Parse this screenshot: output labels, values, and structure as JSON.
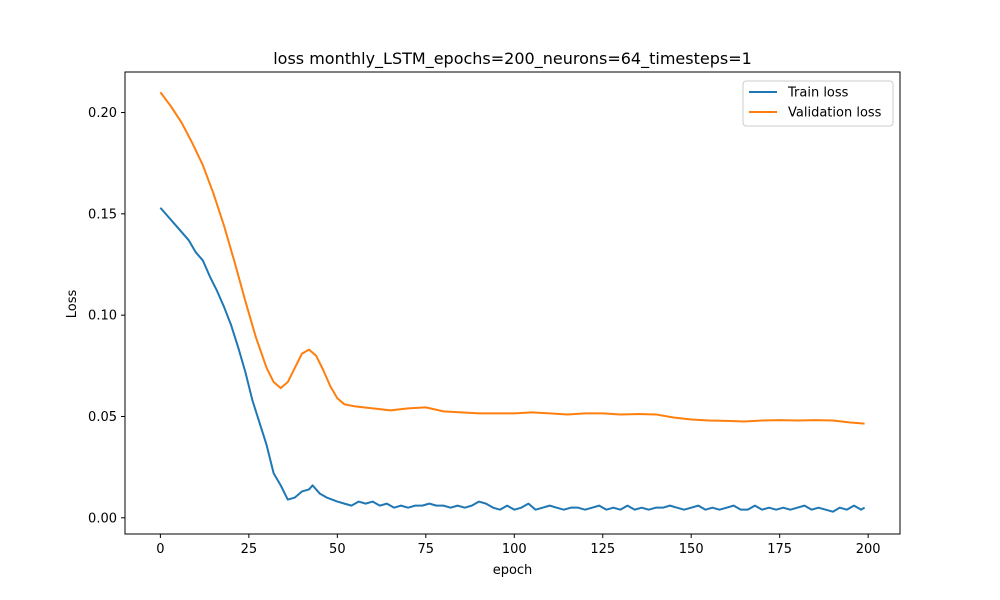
{
  "chart_data": {
    "type": "line",
    "title": "loss monthly_LSTM_epochs=200_neurons=64_timesteps=1",
    "xlabel": "epoch",
    "ylabel": "Loss",
    "xlim": [
      -10,
      209
    ],
    "ylim": [
      -0.008,
      0.22
    ],
    "xticks": [
      0,
      25,
      50,
      75,
      100,
      125,
      150,
      175,
      200
    ],
    "xtick_labels": [
      "0",
      "25",
      "50",
      "75",
      "100",
      "125",
      "150",
      "175",
      "200"
    ],
    "yticks": [
      0.0,
      0.05,
      0.1,
      0.15,
      0.2
    ],
    "ytick_labels": [
      "0.00",
      "0.05",
      "0.10",
      "0.15",
      "0.20"
    ],
    "grid": false,
    "legend_position": "top-right",
    "series": [
      {
        "name": "Train loss",
        "color": "#1f77b4",
        "points": [
          [
            0,
            0.153
          ],
          [
            2,
            0.149
          ],
          [
            4,
            0.145
          ],
          [
            6,
            0.141
          ],
          [
            8,
            0.137
          ],
          [
            10,
            0.131
          ],
          [
            12,
            0.127
          ],
          [
            14,
            0.119
          ],
          [
            16,
            0.112
          ],
          [
            18,
            0.104
          ],
          [
            20,
            0.095
          ],
          [
            22,
            0.084
          ],
          [
            24,
            0.072
          ],
          [
            26,
            0.058
          ],
          [
            28,
            0.047
          ],
          [
            30,
            0.036
          ],
          [
            32,
            0.022
          ],
          [
            34,
            0.016
          ],
          [
            36,
            0.009
          ],
          [
            38,
            0.01
          ],
          [
            40,
            0.013
          ],
          [
            42,
            0.014
          ],
          [
            43,
            0.016
          ],
          [
            45,
            0.012
          ],
          [
            47,
            0.01
          ],
          [
            50,
            0.008
          ],
          [
            52,
            0.007
          ],
          [
            54,
            0.006
          ],
          [
            56,
            0.008
          ],
          [
            58,
            0.007
          ],
          [
            60,
            0.008
          ],
          [
            62,
            0.006
          ],
          [
            64,
            0.007
          ],
          [
            66,
            0.005
          ],
          [
            68,
            0.006
          ],
          [
            70,
            0.005
          ],
          [
            72,
            0.006
          ],
          [
            74,
            0.006
          ],
          [
            76,
            0.007
          ],
          [
            78,
            0.006
          ],
          [
            80,
            0.006
          ],
          [
            82,
            0.005
          ],
          [
            84,
            0.006
          ],
          [
            86,
            0.005
          ],
          [
            88,
            0.006
          ],
          [
            90,
            0.008
          ],
          [
            92,
            0.007
          ],
          [
            94,
            0.005
          ],
          [
            96,
            0.004
          ],
          [
            98,
            0.006
          ],
          [
            100,
            0.004
          ],
          [
            102,
            0.005
          ],
          [
            104,
            0.007
          ],
          [
            106,
            0.004
          ],
          [
            108,
            0.005
          ],
          [
            110,
            0.006
          ],
          [
            112,
            0.005
          ],
          [
            114,
            0.004
          ],
          [
            116,
            0.005
          ],
          [
            118,
            0.005
          ],
          [
            120,
            0.004
          ],
          [
            122,
            0.005
          ],
          [
            124,
            0.006
          ],
          [
            126,
            0.004
          ],
          [
            128,
            0.005
          ],
          [
            130,
            0.004
          ],
          [
            132,
            0.006
          ],
          [
            134,
            0.004
          ],
          [
            136,
            0.005
          ],
          [
            138,
            0.004
          ],
          [
            140,
            0.005
          ],
          [
            142,
            0.005
          ],
          [
            144,
            0.006
          ],
          [
            146,
            0.005
          ],
          [
            148,
            0.004
          ],
          [
            150,
            0.005
          ],
          [
            152,
            0.006
          ],
          [
            154,
            0.004
          ],
          [
            156,
            0.005
          ],
          [
            158,
            0.004
          ],
          [
            160,
            0.005
          ],
          [
            162,
            0.006
          ],
          [
            164,
            0.004
          ],
          [
            166,
            0.004
          ],
          [
            168,
            0.006
          ],
          [
            170,
            0.004
          ],
          [
            172,
            0.005
          ],
          [
            174,
            0.004
          ],
          [
            176,
            0.005
          ],
          [
            178,
            0.004
          ],
          [
            180,
            0.005
          ],
          [
            182,
            0.006
          ],
          [
            184,
            0.004
          ],
          [
            186,
            0.005
          ],
          [
            188,
            0.004
          ],
          [
            190,
            0.003
          ],
          [
            192,
            0.005
          ],
          [
            194,
            0.004
          ],
          [
            196,
            0.006
          ],
          [
            198,
            0.004
          ],
          [
            199,
            0.005
          ]
        ]
      },
      {
        "name": "Validation loss",
        "color": "#ff7f0e",
        "points": [
          [
            0,
            0.21
          ],
          [
            3,
            0.203
          ],
          [
            6,
            0.195
          ],
          [
            9,
            0.185
          ],
          [
            12,
            0.174
          ],
          [
            15,
            0.16
          ],
          [
            18,
            0.144
          ],
          [
            21,
            0.126
          ],
          [
            24,
            0.107
          ],
          [
            27,
            0.089
          ],
          [
            30,
            0.074
          ],
          [
            32,
            0.067
          ],
          [
            34,
            0.064
          ],
          [
            36,
            0.067
          ],
          [
            38,
            0.074
          ],
          [
            40,
            0.081
          ],
          [
            42,
            0.083
          ],
          [
            44,
            0.08
          ],
          [
            46,
            0.073
          ],
          [
            48,
            0.065
          ],
          [
            50,
            0.059
          ],
          [
            52,
            0.056
          ],
          [
            55,
            0.055
          ],
          [
            60,
            0.054
          ],
          [
            65,
            0.053
          ],
          [
            70,
            0.054
          ],
          [
            75,
            0.0545
          ],
          [
            80,
            0.0525
          ],
          [
            85,
            0.052
          ],
          [
            90,
            0.0515
          ],
          [
            95,
            0.0515
          ],
          [
            100,
            0.0515
          ],
          [
            105,
            0.052
          ],
          [
            110,
            0.0515
          ],
          [
            115,
            0.051
          ],
          [
            120,
            0.0515
          ],
          [
            125,
            0.0515
          ],
          [
            130,
            0.051
          ],
          [
            135,
            0.0512
          ],
          [
            140,
            0.051
          ],
          [
            145,
            0.0495
          ],
          [
            150,
            0.0485
          ],
          [
            155,
            0.048
          ],
          [
            160,
            0.0478
          ],
          [
            165,
            0.0475
          ],
          [
            170,
            0.048
          ],
          [
            175,
            0.0482
          ],
          [
            180,
            0.048
          ],
          [
            185,
            0.0482
          ],
          [
            190,
            0.048
          ],
          [
            195,
            0.047
          ],
          [
            199,
            0.0465
          ]
        ]
      }
    ]
  }
}
